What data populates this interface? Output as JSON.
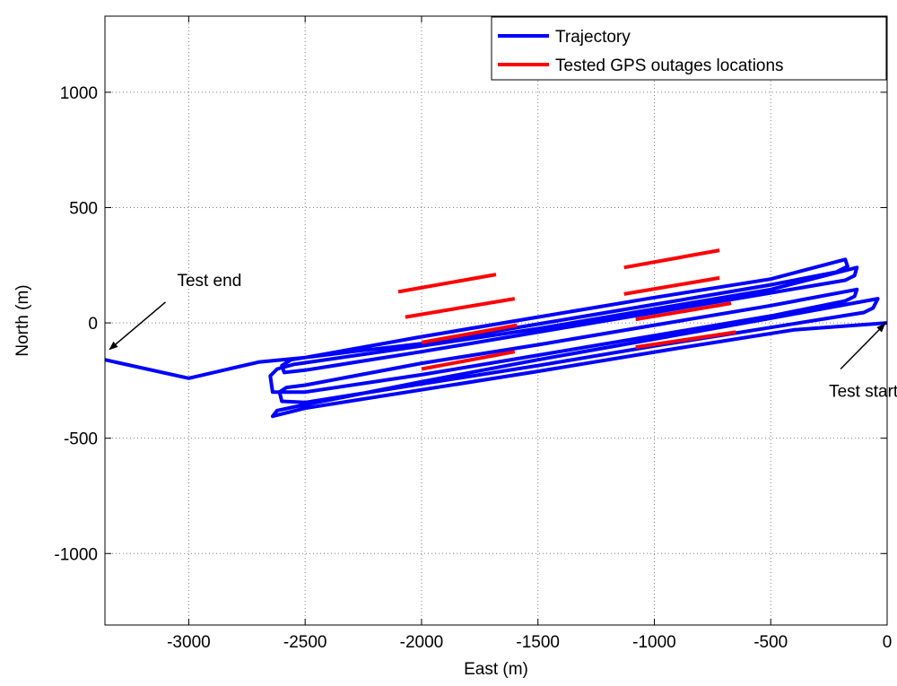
{
  "chart_data": {
    "type": "line",
    "title": "",
    "xlabel": "East (m)",
    "ylabel": "North (m)",
    "xlim": [
      -3360,
      0
    ],
    "ylim": [
      -1310,
      1330
    ],
    "xticks": [
      -3000,
      -2500,
      -2000,
      -1500,
      -1000,
      -500,
      0
    ],
    "yticks": [
      -1000,
      -500,
      0,
      500,
      1000
    ],
    "grid": true,
    "legend_position": "top-right",
    "colors": {
      "trajectory": "#0000ff",
      "outage": "#ff0000",
      "axes": "#000000",
      "grid": "#7f7f7f"
    },
    "series": [
      {
        "name": "Trajectory",
        "x": [
          0,
          -400,
          -900,
          -1500,
          -2000,
          -2500,
          -2640,
          -2620,
          -2550,
          -2000,
          -1500,
          -1000,
          -500,
          -40,
          -60,
          -100,
          -500,
          -1000,
          -1500,
          -2000,
          -2500,
          -2600,
          -2610,
          -2580,
          -2500,
          -2000,
          -1500,
          -1000,
          -500,
          -130,
          -140,
          -180,
          -500,
          -1000,
          -1500,
          -2000,
          -2500,
          -2640,
          -2650,
          -2620,
          -2550,
          -2000,
          -1500,
          -1000,
          -500,
          -130,
          -140,
          -180,
          -500,
          -1000,
          -1500,
          -2000,
          -2500,
          -2590,
          -2600,
          -2560,
          -2500,
          -2000,
          -1500,
          -1000,
          -500,
          -180,
          -170,
          -220,
          -500,
          -1000,
          -1500,
          -2000,
          -2300,
          -2500,
          -2700,
          -3000,
          -3360
        ],
        "y": [
          0,
          -30,
          -110,
          -210,
          -290,
          -370,
          -405,
          -380,
          -365,
          -255,
          -160,
          -70,
          20,
          105,
          65,
          45,
          -20,
          -100,
          -185,
          -265,
          -345,
          -340,
          -300,
          -280,
          -270,
          -175,
          -95,
          -10,
          75,
          145,
          115,
          95,
          30,
          -55,
          -140,
          -225,
          -300,
          -300,
          -230,
          -200,
          -180,
          -100,
          -25,
          60,
          145,
          240,
          205,
          185,
          130,
          45,
          -40,
          -125,
          -205,
          -215,
          -185,
          -160,
          -150,
          -60,
          25,
          110,
          190,
          275,
          245,
          220,
          165,
          80,
          -5,
          -90,
          -125,
          -150,
          -170,
          -240,
          -160
        ]
      },
      {
        "name": "Tested GPS outages locations",
        "segments": [
          {
            "x": [
              -1080,
              -650
            ],
            "y": [
              -105,
              -40
            ]
          },
          {
            "x": [
              -2000,
              -1600
            ],
            "y": [
              -200,
              -125
            ]
          },
          {
            "x": [
              -1080,
              -670
            ],
            "y": [
              15,
              85
            ]
          },
          {
            "x": [
              -2000,
              -1590
            ],
            "y": [
              -85,
              -10
            ]
          },
          {
            "x": [
              -1130,
              -720
            ],
            "y": [
              125,
              195
            ]
          },
          {
            "x": [
              -2070,
              -1600
            ],
            "y": [
              25,
              105
            ]
          },
          {
            "x": [
              -1130,
              -720
            ],
            "y": [
              240,
              315
            ]
          },
          {
            "x": [
              -2100,
              -1680
            ],
            "y": [
              135,
              210
            ]
          }
        ]
      }
    ],
    "annotations": [
      {
        "text": "Test end",
        "text_at": [
          -3050,
          160
        ],
        "arrow_from": [
          -3100,
          90
        ],
        "arrow_to": [
          -3340,
          -115
        ]
      },
      {
        "text": "Test start",
        "text_at": [
          -250,
          -320
        ],
        "arrow_from": [
          -200,
          -200
        ],
        "arrow_to": [
          -10,
          -5
        ]
      }
    ]
  }
}
